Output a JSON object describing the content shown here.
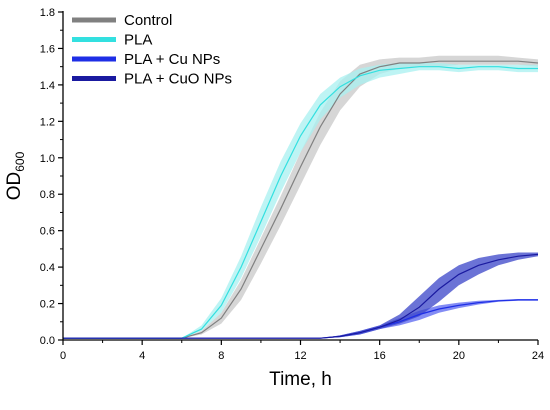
{
  "chart_data": {
    "type": "line",
    "xlabel": "Time, h",
    "ylabel_main": "OD",
    "ylabel_sub": "600",
    "xlim": [
      0,
      24
    ],
    "ylim": [
      0,
      1.8
    ],
    "x_ticks": [
      0,
      4,
      8,
      12,
      16,
      20,
      24
    ],
    "x_tick_labels": [
      "0",
      "4",
      "8",
      "12",
      "16",
      "20",
      "24"
    ],
    "y_ticks": [
      0,
      0.2,
      0.4,
      0.6,
      0.8,
      1.0,
      1.2,
      1.4,
      1.6,
      1.8
    ],
    "y_tick_labels": [
      "0.0",
      "0.2",
      "0.4",
      "0.6",
      "0.8",
      "1.0",
      "1.2",
      "1.4",
      "1.6",
      "1.8"
    ],
    "grid": false,
    "legend_position": "top-left",
    "series": [
      {
        "name": "Control",
        "color": "#808080",
        "band_color": "#c8c8c8",
        "x": [
          0,
          6,
          7,
          8,
          9,
          10,
          11,
          12,
          13,
          14,
          15,
          16,
          17,
          18,
          19,
          20,
          21,
          22,
          23,
          24
        ],
        "y": [
          0.01,
          0.01,
          0.04,
          0.12,
          0.28,
          0.5,
          0.72,
          0.95,
          1.17,
          1.35,
          1.46,
          1.5,
          1.52,
          1.52,
          1.53,
          1.53,
          1.53,
          1.53,
          1.53,
          1.52
        ],
        "upper": [
          0.01,
          0.01,
          0.05,
          0.15,
          0.33,
          0.56,
          0.79,
          1.03,
          1.25,
          1.42,
          1.51,
          1.54,
          1.55,
          1.55,
          1.56,
          1.56,
          1.56,
          1.56,
          1.55,
          1.54
        ],
        "lower": [
          0.01,
          0.01,
          0.03,
          0.09,
          0.22,
          0.42,
          0.63,
          0.85,
          1.07,
          1.26,
          1.39,
          1.46,
          1.49,
          1.5,
          1.5,
          1.51,
          1.51,
          1.51,
          1.51,
          1.5
        ]
      },
      {
        "name": "PLA",
        "color": "#33e0e0",
        "band_color": "#a8f0f0",
        "x": [
          0,
          6,
          7,
          8,
          9,
          10,
          11,
          12,
          13,
          14,
          15,
          16,
          17,
          18,
          19,
          20,
          21,
          22,
          23,
          24
        ],
        "y": [
          0.01,
          0.01,
          0.06,
          0.19,
          0.4,
          0.65,
          0.9,
          1.12,
          1.29,
          1.39,
          1.45,
          1.48,
          1.49,
          1.5,
          1.5,
          1.49,
          1.5,
          1.5,
          1.49,
          1.49
        ],
        "upper": [
          0.01,
          0.01,
          0.08,
          0.23,
          0.46,
          0.73,
          0.98,
          1.19,
          1.35,
          1.44,
          1.49,
          1.51,
          1.52,
          1.52,
          1.52,
          1.51,
          1.51,
          1.51,
          1.51,
          1.51
        ],
        "lower": [
          0.01,
          0.01,
          0.05,
          0.15,
          0.34,
          0.57,
          0.81,
          1.03,
          1.21,
          1.33,
          1.4,
          1.44,
          1.46,
          1.48,
          1.48,
          1.47,
          1.48,
          1.48,
          1.47,
          1.47
        ]
      },
      {
        "name": "PLA + Cu NPs",
        "color": "#1e2ee6",
        "band_color": "#5a66f0",
        "x": [
          0,
          13,
          14,
          15,
          16,
          17,
          18,
          19,
          20,
          21,
          22,
          23,
          24
        ],
        "y": [
          0.01,
          0.01,
          0.02,
          0.04,
          0.07,
          0.1,
          0.14,
          0.17,
          0.19,
          0.205,
          0.215,
          0.22,
          0.22
        ],
        "upper": [
          0.01,
          0.01,
          0.025,
          0.05,
          0.08,
          0.12,
          0.16,
          0.19,
          0.205,
          0.215,
          0.22,
          0.225,
          0.225
        ],
        "lower": [
          0.01,
          0.01,
          0.015,
          0.03,
          0.06,
          0.08,
          0.11,
          0.15,
          0.175,
          0.195,
          0.21,
          0.215,
          0.215
        ]
      },
      {
        "name": "PLA + CuO NPs",
        "color": "#1a1aa0",
        "band_color": "#3a44c8",
        "x": [
          0,
          13,
          14,
          15,
          16,
          17,
          18,
          19,
          20,
          21,
          22,
          23,
          24
        ],
        "y": [
          0.01,
          0.01,
          0.02,
          0.04,
          0.07,
          0.11,
          0.18,
          0.28,
          0.36,
          0.41,
          0.44,
          0.46,
          0.47
        ],
        "upper": [
          0.01,
          0.01,
          0.025,
          0.05,
          0.08,
          0.14,
          0.24,
          0.34,
          0.41,
          0.45,
          0.47,
          0.48,
          0.48
        ],
        "lower": [
          0.01,
          0.01,
          0.015,
          0.03,
          0.06,
          0.09,
          0.13,
          0.21,
          0.3,
          0.36,
          0.41,
          0.44,
          0.46
        ]
      }
    ]
  }
}
